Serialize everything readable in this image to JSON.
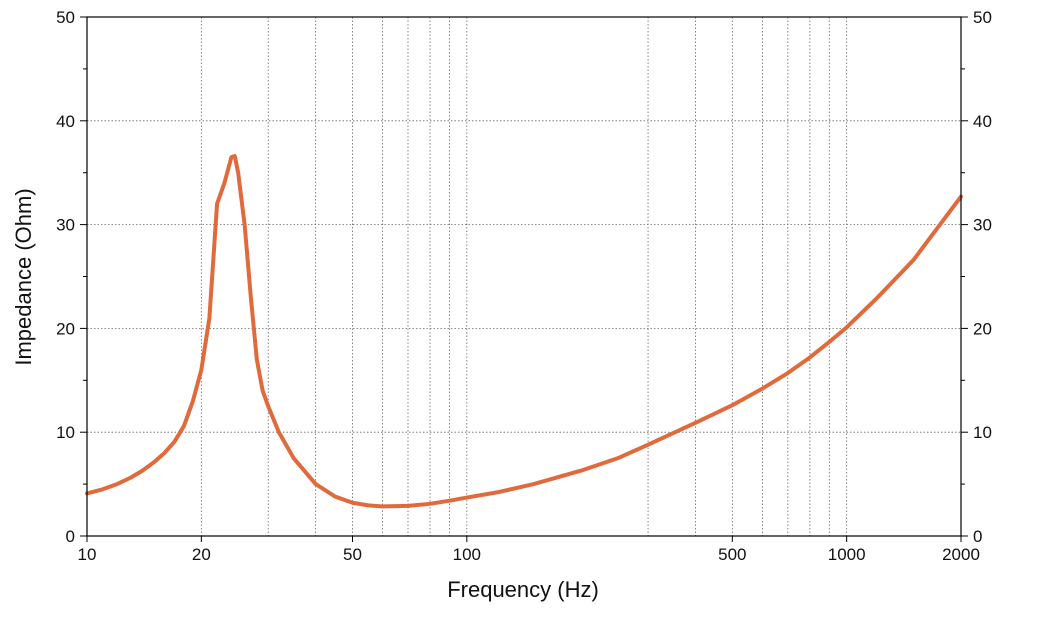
{
  "chart_data": {
    "type": "line",
    "title": "",
    "xlabel": "Frequency (Hz)",
    "ylabel": "Impedance (Ohm)",
    "x_scale": "log",
    "xlim": [
      10,
      2000
    ],
    "ylim": [
      0,
      50
    ],
    "grid": true,
    "legend": "none",
    "x_ticks": [
      {
        "value": 10,
        "label": "10"
      },
      {
        "value": 20,
        "label": "20"
      },
      {
        "value": 50,
        "label": "50"
      },
      {
        "value": 100,
        "label": "100"
      },
      {
        "value": 500,
        "label": "500"
      },
      {
        "value": 1000,
        "label": "1000"
      },
      {
        "value": 2000,
        "label": "2000"
      }
    ],
    "x_grid": [
      20,
      30,
      40,
      50,
      60,
      70,
      80,
      90,
      100,
      300,
      400,
      500,
      600,
      700,
      800,
      900,
      1000
    ],
    "y_ticks": [
      {
        "value": 0,
        "label": "0"
      },
      {
        "value": 10,
        "label": "10"
      },
      {
        "value": 20,
        "label": "20"
      },
      {
        "value": 30,
        "label": "30"
      },
      {
        "value": 40,
        "label": "40"
      },
      {
        "value": 50,
        "label": "50"
      }
    ],
    "y_minor": [
      5,
      15,
      25,
      35,
      45
    ],
    "series": [
      {
        "color": "#e06a3c",
        "points": [
          [
            10,
            4.1
          ],
          [
            11,
            4.5
          ],
          [
            12,
            5.0
          ],
          [
            13,
            5.6
          ],
          [
            14,
            6.3
          ],
          [
            15,
            7.1
          ],
          [
            16,
            8.0
          ],
          [
            17,
            9.1
          ],
          [
            18,
            10.6
          ],
          [
            19,
            13.0
          ],
          [
            20,
            16.0
          ],
          [
            21,
            21.0
          ],
          [
            22,
            32.0
          ],
          [
            23,
            34.0
          ],
          [
            24,
            36.5
          ],
          [
            24.5,
            36.6
          ],
          [
            25,
            35.0
          ],
          [
            26,
            30.0
          ],
          [
            27,
            23.0
          ],
          [
            28,
            17.0
          ],
          [
            29,
            14.0
          ],
          [
            30,
            12.5
          ],
          [
            32,
            10.0
          ],
          [
            35,
            7.5
          ],
          [
            40,
            5.0
          ],
          [
            45,
            3.8
          ],
          [
            50,
            3.2
          ],
          [
            55,
            2.95
          ],
          [
            60,
            2.85
          ],
          [
            70,
            2.9
          ],
          [
            80,
            3.1
          ],
          [
            90,
            3.4
          ],
          [
            100,
            3.7
          ],
          [
            120,
            4.2
          ],
          [
            150,
            5.0
          ],
          [
            200,
            6.3
          ],
          [
            250,
            7.5
          ],
          [
            300,
            8.8
          ],
          [
            400,
            10.9
          ],
          [
            500,
            12.6
          ],
          [
            600,
            14.2
          ],
          [
            700,
            15.7
          ],
          [
            800,
            17.2
          ],
          [
            900,
            18.7
          ],
          [
            1000,
            20.1
          ],
          [
            1200,
            22.9
          ],
          [
            1500,
            26.6
          ],
          [
            2000,
            32.7
          ]
        ]
      }
    ]
  }
}
